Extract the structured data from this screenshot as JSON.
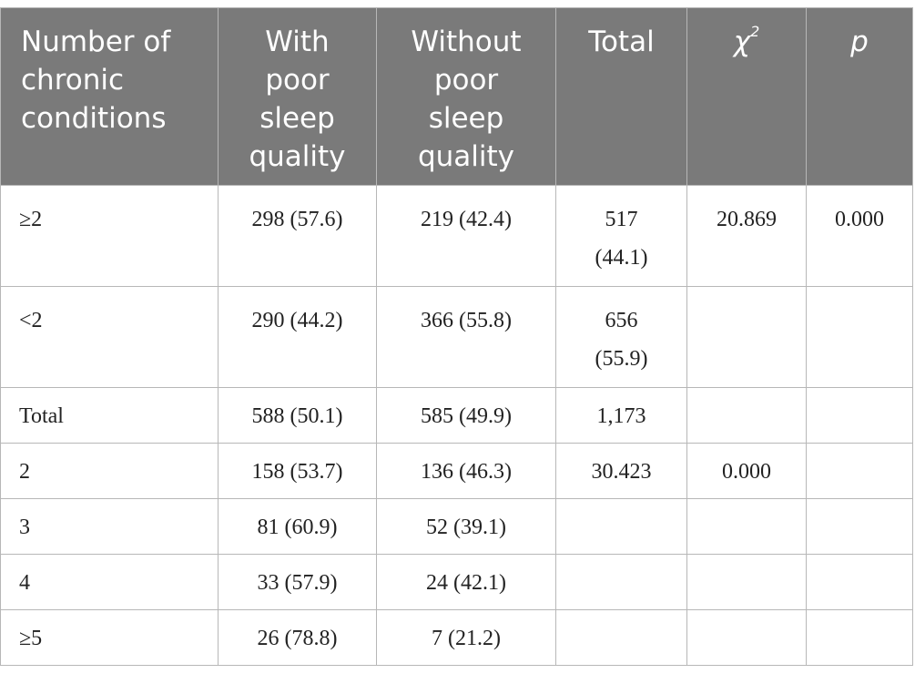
{
  "table": {
    "headers": {
      "number_of_chronic_conditions": [
        "Number of",
        "chronic",
        "conditions"
      ],
      "with_poor_sleep": [
        "With",
        "poor",
        "sleep",
        "quality"
      ],
      "without_poor_sleep": [
        "Without",
        "poor",
        "sleep",
        "quality"
      ],
      "total": "Total",
      "chi_square_base": "χ",
      "chi_square_sup": "2",
      "p": "p"
    },
    "rows": [
      {
        "condition": "≥2",
        "with": "298 (57.6)",
        "without": "219 (42.4)",
        "total_line1": "517",
        "total_line2": "(44.1)",
        "chi": "20.869",
        "p": "0.000"
      },
      {
        "condition": "<2",
        "with": "290 (44.2)",
        "without": "366 (55.8)",
        "total_line1": "656",
        "total_line2": "(55.9)",
        "chi": "",
        "p": ""
      },
      {
        "condition": "Total",
        "with": "588 (50.1)",
        "without": "585 (49.9)",
        "total_line1": "1,173",
        "total_line2": "",
        "chi": "",
        "p": ""
      },
      {
        "condition": "2",
        "with": "158 (53.7)",
        "without": "136 (46.3)",
        "total_line1": "30.423",
        "total_line2": "",
        "chi": "0.000",
        "p": ""
      },
      {
        "condition": "3",
        "with": "81 (60.9)",
        "without": "52 (39.1)",
        "total_line1": "",
        "total_line2": "",
        "chi": "",
        "p": ""
      },
      {
        "condition": "4",
        "with": "33 (57.9)",
        "without": "24 (42.1)",
        "total_line1": "",
        "total_line2": "",
        "chi": "",
        "p": ""
      },
      {
        "condition": "≥5",
        "with": "26 (78.8)",
        "without": "7 (21.2)",
        "total_line1": "",
        "total_line2": "",
        "chi": "",
        "p": ""
      }
    ]
  },
  "colors": {
    "header_background": "#7a7a7a",
    "header_text": "#ffffff",
    "grid_line": "#b7b7b7",
    "body_text": "#222222"
  }
}
